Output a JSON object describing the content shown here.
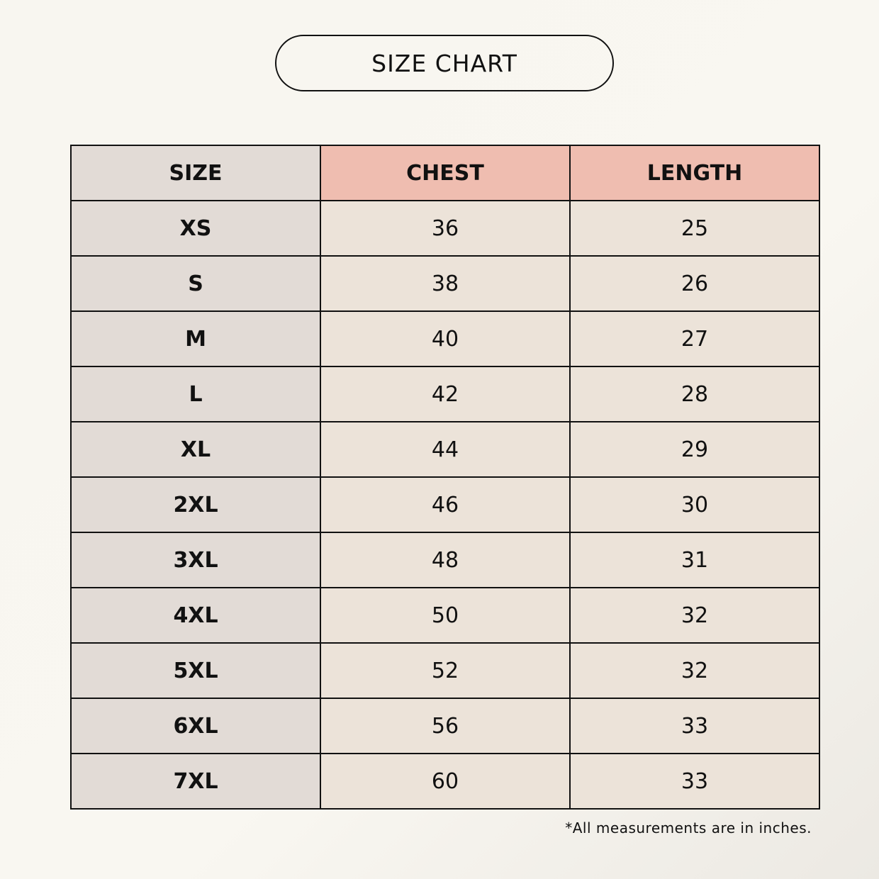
{
  "header": {
    "title": "SIZE CHART"
  },
  "table": {
    "columns": [
      "SIZE",
      "CHEST",
      "LENGTH"
    ],
    "rows": [
      [
        "XS",
        "36",
        "25"
      ],
      [
        "S",
        "38",
        "26"
      ],
      [
        "M",
        "40",
        "27"
      ],
      [
        "L",
        "42",
        "28"
      ],
      [
        "XL",
        "44",
        "29"
      ],
      [
        "2XL",
        "46",
        "30"
      ],
      [
        "3XL",
        "48",
        "31"
      ],
      [
        "4XL",
        "50",
        "32"
      ],
      [
        "5XL",
        "52",
        "32"
      ],
      [
        "6XL",
        "56",
        "33"
      ],
      [
        "7XL",
        "60",
        "33"
      ]
    ]
  },
  "footnote": "*All measurements are in inches."
}
